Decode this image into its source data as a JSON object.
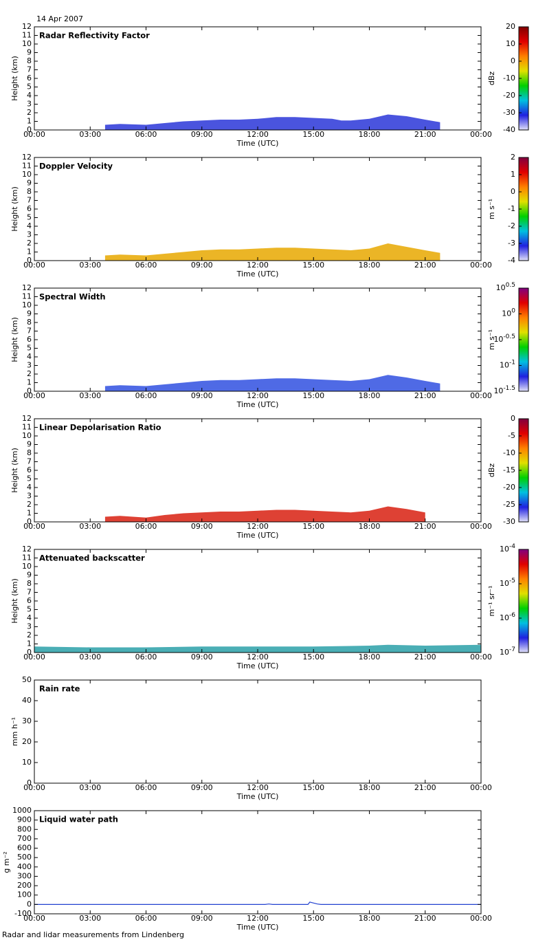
{
  "date": "14 Apr 2007",
  "footer": "Radar and lidar measurements from Lindenberg",
  "chart_data": [
    {
      "type": "area",
      "title": "Radar Reflectivity Factor",
      "xlabel": "Time (UTC)",
      "ylabel": "Height (km)",
      "color": "#2a36d8",
      "x": [
        3.8,
        4.6,
        6,
        7,
        8,
        9,
        10,
        11,
        12,
        13,
        14,
        15,
        16,
        16.5,
        17,
        18,
        19,
        20,
        21,
        21.8
      ],
      "values": [
        0.6,
        0.7,
        0.6,
        0.8,
        1.0,
        1.1,
        1.2,
        1.2,
        1.3,
        1.5,
        1.5,
        1.4,
        1.3,
        1.1,
        1.1,
        1.3,
        1.8,
        1.6,
        1.2,
        0.9
      ],
      "xlim": [
        0,
        24
      ],
      "xticks": [
        {
          "value": 0,
          "label": "00:00"
        },
        {
          "value": 3,
          "label": "03:00"
        },
        {
          "value": 6,
          "label": "06:00"
        },
        {
          "value": 9,
          "label": "09:00"
        },
        {
          "value": 12,
          "label": "12:00"
        },
        {
          "value": 15,
          "label": "15:00"
        },
        {
          "value": 18,
          "label": "18:00"
        },
        {
          "value": 21,
          "label": "21:00"
        },
        {
          "value": 24,
          "label": "00:00"
        }
      ],
      "ylim": [
        0,
        12
      ],
      "yticks": [
        0,
        1,
        2,
        3,
        4,
        5,
        6,
        7,
        8,
        9,
        10,
        11,
        12
      ],
      "colorbar": {
        "label": "dBz",
        "lim": [
          -40,
          20
        ],
        "ticks": [
          -40,
          -30,
          -20,
          -10,
          0,
          10,
          20
        ],
        "colormap": [
          "#e0e0f8",
          "#2020e0",
          "#00c0e0",
          "#00d000",
          "#e0e000",
          "#ff8000",
          "#e00000",
          "#800000"
        ]
      }
    },
    {
      "type": "area",
      "title": "Doppler Velocity",
      "xlabel": "Time (UTC)",
      "ylabel": "Height (km)",
      "color": "#e8a800",
      "x": [
        3.8,
        4.6,
        6,
        7,
        8,
        9,
        10,
        11,
        12,
        13,
        14,
        15,
        16,
        17,
        18,
        19,
        20,
        21,
        21.8
      ],
      "values": [
        0.6,
        0.7,
        0.6,
        0.8,
        1.0,
        1.2,
        1.3,
        1.3,
        1.4,
        1.5,
        1.5,
        1.4,
        1.3,
        1.2,
        1.4,
        2.0,
        1.6,
        1.2,
        0.9
      ],
      "xlim": [
        0,
        24
      ],
      "xticks": [
        {
          "value": 0,
          "label": "00:00"
        },
        {
          "value": 3,
          "label": "03:00"
        },
        {
          "value": 6,
          "label": "06:00"
        },
        {
          "value": 9,
          "label": "09:00"
        },
        {
          "value": 12,
          "label": "12:00"
        },
        {
          "value": 15,
          "label": "15:00"
        },
        {
          "value": 18,
          "label": "18:00"
        },
        {
          "value": 21,
          "label": "21:00"
        },
        {
          "value": 24,
          "label": "00:00"
        }
      ],
      "ylim": [
        0,
        12
      ],
      "yticks": [
        0,
        1,
        2,
        3,
        4,
        5,
        6,
        7,
        8,
        9,
        10,
        11,
        12
      ],
      "colorbar": {
        "label": "m s⁻¹",
        "lim": [
          -4,
          2
        ],
        "ticks": [
          -4,
          -3,
          -2,
          -1,
          0,
          1,
          2
        ],
        "colormap": [
          "#e0e0f8",
          "#2020e0",
          "#00c0e0",
          "#00d000",
          "#e0e000",
          "#ff8000",
          "#e00000",
          "#800040"
        ]
      }
    },
    {
      "type": "area",
      "title": "Spectral Width",
      "xlabel": "Time (UTC)",
      "ylabel": "Height (km)",
      "color": "#3050e0",
      "x": [
        3.8,
        4.6,
        6,
        7,
        8,
        9,
        10,
        11,
        12,
        13,
        14,
        15,
        16,
        17,
        18,
        19,
        20,
        21,
        21.8
      ],
      "values": [
        0.6,
        0.7,
        0.6,
        0.8,
        1.0,
        1.2,
        1.3,
        1.3,
        1.4,
        1.5,
        1.5,
        1.4,
        1.3,
        1.2,
        1.4,
        1.9,
        1.6,
        1.2,
        0.9
      ],
      "xlim": [
        0,
        24
      ],
      "xticks": [
        {
          "value": 0,
          "label": "00:00"
        },
        {
          "value": 3,
          "label": "03:00"
        },
        {
          "value": 6,
          "label": "06:00"
        },
        {
          "value": 9,
          "label": "09:00"
        },
        {
          "value": 12,
          "label": "12:00"
        },
        {
          "value": 15,
          "label": "15:00"
        },
        {
          "value": 18,
          "label": "18:00"
        },
        {
          "value": 21,
          "label": "21:00"
        },
        {
          "value": 24,
          "label": "00:00"
        }
      ],
      "ylim": [
        0,
        12
      ],
      "yticks": [
        0,
        1,
        2,
        3,
        4,
        5,
        6,
        7,
        8,
        9,
        10,
        11,
        12
      ],
      "colorbar": {
        "label": "m s⁻¹",
        "lim": [
          -1.5,
          0.5
        ],
        "ticks": [
          {
            "value": -1.5,
            "label": "10",
            "exponent": "-1.5"
          },
          {
            "value": -1,
            "label": "10",
            "exponent": "-1"
          },
          {
            "value": -0.5,
            "label": "10",
            "exponent": "-0.5"
          },
          {
            "value": 0,
            "label": "10",
            "exponent": "0"
          },
          {
            "value": 0.5,
            "label": "10",
            "exponent": "0.5"
          }
        ],
        "colormap": [
          "#e0e0f8",
          "#2020e0",
          "#00c0e0",
          "#00d000",
          "#e0e000",
          "#ff8000",
          "#e00000",
          "#800080"
        ]
      }
    },
    {
      "type": "area",
      "title": "Linear Depolarisation Ratio",
      "xlabel": "Time (UTC)",
      "ylabel": "Height (km)",
      "color": "#d82010",
      "x": [
        3.8,
        4.6,
        6,
        7,
        8,
        9,
        10,
        11,
        12,
        13,
        14,
        15,
        16,
        17,
        18,
        19,
        20,
        21
      ],
      "values": [
        0.6,
        0.7,
        0.5,
        0.8,
        1.0,
        1.1,
        1.2,
        1.2,
        1.3,
        1.4,
        1.4,
        1.3,
        1.2,
        1.1,
        1.3,
        1.8,
        1.5,
        1.1
      ],
      "xlim": [
        0,
        24
      ],
      "xticks": [
        {
          "value": 0,
          "label": "00:00"
        },
        {
          "value": 3,
          "label": "03:00"
        },
        {
          "value": 6,
          "label": "06:00"
        },
        {
          "value": 9,
          "label": "09:00"
        },
        {
          "value": 12,
          "label": "12:00"
        },
        {
          "value": 15,
          "label": "15:00"
        },
        {
          "value": 18,
          "label": "18:00"
        },
        {
          "value": 21,
          "label": "21:00"
        },
        {
          "value": 24,
          "label": "00:00"
        }
      ],
      "ylim": [
        0,
        12
      ],
      "yticks": [
        0,
        1,
        2,
        3,
        4,
        5,
        6,
        7,
        8,
        9,
        10,
        11,
        12
      ],
      "colorbar": {
        "label": "dBz",
        "lim": [
          -30,
          0
        ],
        "ticks": [
          -30,
          -25,
          -20,
          -15,
          -10,
          -5,
          0
        ],
        "colormap": [
          "#e0e0f8",
          "#2020e0",
          "#00c0e0",
          "#00d000",
          "#e0e000",
          "#ff8000",
          "#e00000",
          "#800040"
        ]
      }
    },
    {
      "type": "area",
      "title": "Attenuated backscatter",
      "xlabel": "Time (UTC)",
      "ylabel": "Height (km)",
      "color": "#2aa0a8",
      "x": [
        0,
        3,
        6,
        9,
        12,
        15,
        18,
        19,
        21,
        24
      ],
      "values": [
        0.7,
        0.6,
        0.6,
        0.7,
        0.7,
        0.7,
        0.8,
        0.9,
        0.8,
        0.9
      ],
      "xlim": [
        0,
        24
      ],
      "xticks": [
        {
          "value": 0,
          "label": "00:00"
        },
        {
          "value": 3,
          "label": "03:00"
        },
        {
          "value": 6,
          "label": "06:00"
        },
        {
          "value": 9,
          "label": "09:00"
        },
        {
          "value": 12,
          "label": "12:00"
        },
        {
          "value": 15,
          "label": "15:00"
        },
        {
          "value": 18,
          "label": "18:00"
        },
        {
          "value": 21,
          "label": "21:00"
        },
        {
          "value": 24,
          "label": "00:00"
        }
      ],
      "ylim": [
        0,
        12
      ],
      "yticks": [
        0,
        1,
        2,
        3,
        4,
        5,
        6,
        7,
        8,
        9,
        10,
        11,
        12
      ],
      "colorbar": {
        "label": "m⁻¹ sr⁻¹",
        "lim": [
          -7,
          -4
        ],
        "ticks": [
          {
            "value": -7,
            "label": "10",
            "exponent": "-7"
          },
          {
            "value": -6,
            "label": "10",
            "exponent": "-6"
          },
          {
            "value": -5,
            "label": "10",
            "exponent": "-5"
          },
          {
            "value": -4,
            "label": "10",
            "exponent": "-4"
          }
        ],
        "colormap": [
          "#e0e0f8",
          "#2020e0",
          "#00c0e0",
          "#00d000",
          "#e0e000",
          "#ff8000",
          "#e00000",
          "#800080"
        ]
      }
    },
    {
      "type": "line",
      "title": "Rain rate",
      "xlabel": "Time (UTC)",
      "ylabel": "mm h⁻¹",
      "color": "#2040d0",
      "x": [],
      "values": [],
      "xlim": [
        0,
        24
      ],
      "xticks": [
        {
          "value": 0,
          "label": "00:00"
        },
        {
          "value": 3,
          "label": "03:00"
        },
        {
          "value": 6,
          "label": "06:00"
        },
        {
          "value": 9,
          "label": "09:00"
        },
        {
          "value": 12,
          "label": "12:00"
        },
        {
          "value": 15,
          "label": "15:00"
        },
        {
          "value": 18,
          "label": "18:00"
        },
        {
          "value": 21,
          "label": "21:00"
        },
        {
          "value": 24,
          "label": "00:00"
        }
      ],
      "ylim": [
        0,
        50
      ],
      "yticks": [
        0,
        10,
        20,
        30,
        40,
        50
      ]
    },
    {
      "type": "line",
      "title": "Liquid water path",
      "xlabel": "Time (UTC)",
      "ylabel": "g m⁻²",
      "color": "#2040d0",
      "x": [
        0,
        12.4,
        12.6,
        12.8,
        14.7,
        14.8,
        15.0,
        15.2,
        15.4,
        24
      ],
      "values": [
        0,
        0,
        5,
        0,
        0,
        25,
        15,
        5,
        0,
        0
      ],
      "xlim": [
        0,
        24
      ],
      "xticks": [
        {
          "value": 0,
          "label": "00:00"
        },
        {
          "value": 3,
          "label": "03:00"
        },
        {
          "value": 6,
          "label": "06:00"
        },
        {
          "value": 9,
          "label": "09:00"
        },
        {
          "value": 12,
          "label": "12:00"
        },
        {
          "value": 15,
          "label": "15:00"
        },
        {
          "value": 18,
          "label": "18:00"
        },
        {
          "value": 21,
          "label": "21:00"
        },
        {
          "value": 24,
          "label": "00:00"
        }
      ],
      "ylim": [
        -100,
        1000
      ],
      "yticks": [
        -100,
        0,
        100,
        200,
        300,
        400,
        500,
        600,
        700,
        800,
        900,
        1000
      ]
    }
  ]
}
